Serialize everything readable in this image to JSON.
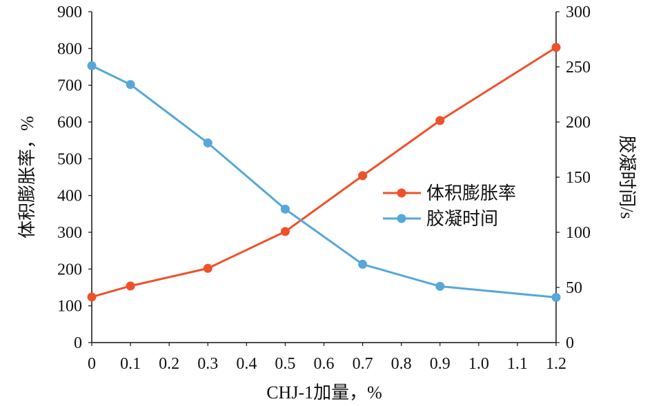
{
  "chart_data": {
    "type": "line",
    "title": "",
    "xlabel": "CHJ-1加量，%",
    "ylabel": "体积膨胀率，%",
    "y2label": "胶凝时间/s",
    "xlim": [
      0,
      1.2
    ],
    "ylim": [
      0,
      900
    ],
    "y2lim": [
      0,
      300
    ],
    "x_ticks": [
      "0",
      "0.1",
      "0.2",
      "0.3",
      "0.4",
      "0.5",
      "0.6",
      "0.7",
      "0.8",
      "0.9",
      "1.0",
      "1.1",
      "1.2"
    ],
    "y_ticks": [
      "0",
      "100",
      "200",
      "300",
      "400",
      "500",
      "600",
      "700",
      "800",
      "900"
    ],
    "y2_ticks": [
      "0",
      "50",
      "100",
      "150",
      "200",
      "250",
      "300"
    ],
    "legend_position": "center-right",
    "grid": false,
    "x": [
      0,
      0.1,
      0.3,
      0.5,
      0.7,
      0.9,
      1.2
    ],
    "series": [
      {
        "name": "体积膨胀率",
        "axis": "left",
        "color": "#f0502a",
        "values": [
          124,
          154,
          202,
          302,
          454,
          604,
          803
        ]
      },
      {
        "name": "胶凝时间",
        "axis": "right",
        "color": "#55a7dc",
        "values": [
          251,
          234,
          181,
          121,
          71,
          51,
          41
        ]
      }
    ]
  }
}
